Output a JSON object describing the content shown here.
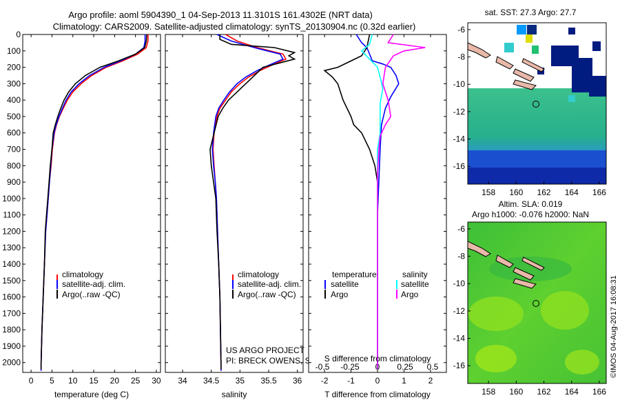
{
  "header": {
    "line1": "Argo profile: aoml 5904390_1 04-Sep-2013 11.3101S 161.4302E (NRT data)",
    "line2": "Climatology: CARS2009. Satellite-adjusted climatology: synTS_20130904.nc (0.32d earlier)"
  },
  "colors": {
    "climatology": "#ff0000",
    "satellite": "#0000ff",
    "argo": "#000000",
    "sal_satellite": "#00ffff",
    "sal_argo": "#ff00ff"
  },
  "chart_data": [
    {
      "type": "line",
      "xlabel": "temperature (deg C)",
      "xlim": [
        -2,
        31
      ],
      "ylim": [
        2060,
        0
      ],
      "xticks": [
        0,
        5,
        10,
        15,
        20,
        25,
        30
      ],
      "yticks": [
        0,
        100,
        200,
        300,
        400,
        500,
        600,
        700,
        800,
        900,
        1000,
        1100,
        1200,
        1300,
        1400,
        1500,
        1600,
        1700,
        1800,
        1900,
        2000
      ],
      "legend": [
        "climatology",
        "satellite-adj. clim.",
        "Argo(..raw -QC)"
      ],
      "series": [
        {
          "name": "climatology",
          "color": "#ff0000",
          "points": [
            [
              28.0,
              0
            ],
            [
              28.0,
              40
            ],
            [
              27.6,
              80
            ],
            [
              25.5,
              120
            ],
            [
              22,
              160
            ],
            [
              18,
              200
            ],
            [
              14.5,
              250
            ],
            [
              12.0,
              300
            ],
            [
              10,
              350
            ],
            [
              8.7,
              400
            ],
            [
              7.7,
              450
            ],
            [
              6.8,
              500
            ],
            [
              6.1,
              550
            ],
            [
              5.6,
              600
            ],
            [
              5.1,
              700
            ],
            [
              4.8,
              800
            ],
            [
              4.4,
              900
            ],
            [
              4.1,
              1000
            ],
            [
              3.8,
              1100
            ],
            [
              3.5,
              1200
            ],
            [
              3.2,
              1400
            ],
            [
              2.9,
              1600
            ],
            [
              2.6,
              1800
            ],
            [
              2.4,
              2000
            ],
            [
              2.4,
              2050
            ]
          ]
        },
        {
          "name": "satellite-adj. clim.",
          "color": "#0000ff",
          "points": [
            [
              27.3,
              0
            ],
            [
              27.3,
              40
            ],
            [
              27.0,
              80
            ],
            [
              25.0,
              120
            ],
            [
              21.5,
              160
            ],
            [
              17.5,
              200
            ],
            [
              14.0,
              250
            ],
            [
              11.5,
              300
            ],
            [
              9.6,
              350
            ],
            [
              8.4,
              400
            ],
            [
              7.5,
              450
            ],
            [
              6.7,
              500
            ],
            [
              6.0,
              550
            ],
            [
              5.5,
              600
            ],
            [
              5.0,
              700
            ],
            [
              4.7,
              800
            ],
            [
              4.4,
              900
            ],
            [
              4.1,
              1000
            ],
            [
              3.8,
              1100
            ],
            [
              3.5,
              1200
            ],
            [
              3.2,
              1400
            ],
            [
              2.9,
              1600
            ],
            [
              2.6,
              1800
            ],
            [
              2.4,
              2000
            ],
            [
              2.4,
              2050
            ]
          ]
        },
        {
          "name": "Argo(..raw -QC)",
          "color": "#000000",
          "points": [
            [
              27.7,
              0
            ],
            [
              27.6,
              40
            ],
            [
              27.2,
              80
            ],
            [
              25.0,
              120
            ],
            [
              21.0,
              160
            ],
            [
              16.5,
              200
            ],
            [
              13.0,
              250
            ],
            [
              10.6,
              300
            ],
            [
              9.0,
              350
            ],
            [
              7.9,
              400
            ],
            [
              7.1,
              450
            ],
            [
              6.4,
              500
            ],
            [
              5.8,
              550
            ],
            [
              5.3,
              600
            ],
            [
              5.0,
              700
            ],
            [
              4.6,
              800
            ],
            [
              4.3,
              900
            ],
            [
              4.0,
              1000
            ],
            [
              3.7,
              1100
            ],
            [
              3.4,
              1200
            ],
            [
              3.2,
              1400
            ],
            [
              2.9,
              1600
            ],
            [
              2.6,
              1800
            ],
            [
              2.4,
              2000
            ],
            [
              2.4,
              2040
            ]
          ]
        }
      ]
    },
    {
      "type": "line",
      "xlabel": "salinity",
      "xlim": [
        33.7,
        36.1
      ],
      "ylim": [
        2060,
        0
      ],
      "xticks": [
        34,
        34.5,
        35,
        35.5,
        36
      ],
      "legend": [
        "climatology",
        "satellite-adj. clim.",
        "Argo(..raw -QC)"
      ],
      "series": [
        {
          "name": "climatology",
          "color": "#ff0000",
          "points": [
            [
              34.75,
              0
            ],
            [
              34.95,
              40
            ],
            [
              35.3,
              80
            ],
            [
              35.75,
              120
            ],
            [
              35.8,
              150
            ],
            [
              35.6,
              180
            ],
            [
              35.35,
              220
            ],
            [
              35.15,
              260
            ],
            [
              35.0,
              300
            ],
            [
              34.85,
              350
            ],
            [
              34.75,
              400
            ],
            [
              34.65,
              450
            ],
            [
              34.6,
              500
            ],
            [
              34.55,
              600
            ],
            [
              34.53,
              700
            ],
            [
              34.55,
              800
            ],
            [
              34.57,
              900
            ],
            [
              34.59,
              1000
            ],
            [
              34.61,
              1200
            ],
            [
              34.63,
              1400
            ],
            [
              34.65,
              1600
            ],
            [
              34.66,
              1800
            ],
            [
              34.67,
              2000
            ],
            [
              34.67,
              2050
            ]
          ]
        },
        {
          "name": "satellite-adj. clim.",
          "color": "#0000ff",
          "points": [
            [
              34.6,
              0
            ],
            [
              34.85,
              40
            ],
            [
              35.25,
              80
            ],
            [
              35.7,
              120
            ],
            [
              35.75,
              150
            ],
            [
              35.55,
              180
            ],
            [
              35.3,
              220
            ],
            [
              35.1,
              260
            ],
            [
              34.95,
              300
            ],
            [
              34.82,
              350
            ],
            [
              34.72,
              400
            ],
            [
              34.63,
              450
            ],
            [
              34.58,
              500
            ],
            [
              34.54,
              600
            ],
            [
              34.52,
              700
            ],
            [
              34.54,
              800
            ],
            [
              34.57,
              900
            ],
            [
              34.59,
              1000
            ],
            [
              34.61,
              1200
            ],
            [
              34.63,
              1400
            ],
            [
              34.65,
              1600
            ],
            [
              34.66,
              1800
            ],
            [
              34.67,
              2000
            ],
            [
              34.67,
              2050
            ]
          ]
        },
        {
          "name": "Argo(..raw -QC)",
          "color": "#000000",
          "points": [
            [
              34.65,
              0
            ],
            [
              34.65,
              30
            ],
            [
              34.85,
              60
            ],
            [
              35.6,
              80
            ],
            [
              35.95,
              110
            ],
            [
              35.85,
              130
            ],
            [
              35.95,
              150
            ],
            [
              35.4,
              200
            ],
            [
              35.25,
              250
            ],
            [
              35.1,
              300
            ],
            [
              34.95,
              350
            ],
            [
              34.8,
              400
            ],
            [
              34.7,
              450
            ],
            [
              34.62,
              500
            ],
            [
              34.55,
              600
            ],
            [
              34.48,
              700
            ],
            [
              34.5,
              800
            ],
            [
              34.54,
              900
            ],
            [
              34.58,
              1000
            ],
            [
              34.6,
              1200
            ],
            [
              34.63,
              1400
            ],
            [
              34.65,
              1600
            ],
            [
              34.66,
              1800
            ],
            [
              34.67,
              2000
            ],
            [
              34.67,
              2040
            ]
          ]
        }
      ]
    },
    {
      "type": "line",
      "xlabel": "T difference from climatology",
      "xlabel_top": "S difference from climatology",
      "xlim": [
        -2.6,
        2.6
      ],
      "ylim": [
        2060,
        0
      ],
      "xticks": [
        -2,
        -1,
        0,
        1,
        2
      ],
      "xticks_top": [
        "-0.5",
        "-0.25",
        "0",
        "0.25",
        "0.5"
      ],
      "legend_headers": [
        "temperature",
        "salinity"
      ],
      "legend": [
        "satellite",
        "Argo",
        "satellite",
        "Argo"
      ],
      "series": [
        {
          "name": "satellite",
          "color": "#0000ff",
          "points": [
            [
              -0.8,
              0
            ],
            [
              -0.6,
              50
            ],
            [
              -0.4,
              80
            ],
            [
              -0.3,
              120
            ],
            [
              -0.2,
              160
            ],
            [
              0.2,
              180
            ],
            [
              0.5,
              200
            ],
            [
              0.7,
              250
            ],
            [
              0.8,
              300
            ],
            [
              0.5,
              380
            ],
            [
              0.3,
              450
            ],
            [
              0.15,
              550
            ],
            [
              0.1,
              700
            ],
            [
              0.05,
              900
            ],
            [
              0,
              1100
            ],
            [
              0,
              2040
            ]
          ]
        },
        {
          "name": "Argo",
          "color": "#000000",
          "points": [
            [
              -0.3,
              0
            ],
            [
              -0.4,
              80
            ],
            [
              -0.6,
              130
            ],
            [
              -1.5,
              200
            ],
            [
              -2.0,
              220
            ],
            [
              -1.7,
              260
            ],
            [
              -1.5,
              300
            ],
            [
              -1.3,
              400
            ],
            [
              -1.0,
              500
            ],
            [
              -0.9,
              550
            ],
            [
              -0.6,
              600
            ],
            [
              -0.3,
              700
            ],
            [
              -0.1,
              800
            ],
            [
              0,
              900
            ],
            [
              0,
              2040
            ]
          ]
        },
        {
          "name": "satellite",
          "color": "#00ffff",
          "points": [
            [
              -0.2,
              0
            ],
            [
              -0.3,
              60
            ],
            [
              -0.6,
              100
            ],
            [
              -0.3,
              150
            ],
            [
              0,
              200
            ],
            [
              0.1,
              260
            ],
            [
              0.2,
              330
            ],
            [
              0.1,
              420
            ],
            [
              0.1,
              500
            ],
            [
              0.1,
              600
            ],
            [
              0,
              700
            ],
            [
              0,
              2040
            ]
          ]
        },
        {
          "name": "Argo",
          "color": "#ff00ff",
          "points": [
            [
              0.6,
              0
            ],
            [
              0.4,
              50
            ],
            [
              1.8,
              80
            ],
            [
              1.0,
              100
            ],
            [
              0.6,
              130
            ],
            [
              0.3,
              200
            ],
            [
              0.2,
              300
            ],
            [
              0.4,
              400
            ],
            [
              0.5,
              500
            ],
            [
              0.3,
              550
            ],
            [
              0.1,
              620
            ],
            [
              0.05,
              700
            ],
            [
              0,
              850
            ],
            [
              0,
              2040
            ]
          ]
        }
      ]
    }
  ],
  "maps": [
    {
      "title": "sat. SST: 27.3 Argo: 27.7",
      "xticks": [
        158,
        160,
        162,
        164,
        166
      ],
      "yticks": [
        -6,
        -8,
        -10,
        -12,
        -14,
        -16
      ]
    },
    {
      "title_line1": "Altim. SLA: 0.019",
      "title_line2": "Argo h1000: -0.076 h2000: NaN",
      "xticks": [
        158,
        160,
        162,
        164,
        166
      ],
      "yticks": [
        -6,
        -8,
        -10,
        -12,
        -14,
        -16
      ]
    }
  ],
  "credit": {
    "line1": "US ARGO PROJECT",
    "line2": "PI: BRECK OWENS, STEVE JAYNE, P.E. ROBBINS",
    "stamp": "©IMOS 04-Aug-2017 16:08:31"
  }
}
